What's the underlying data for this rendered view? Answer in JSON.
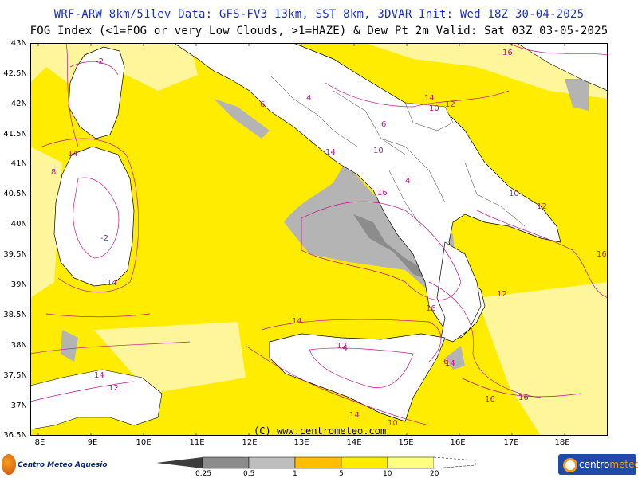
{
  "header": {
    "line1": "WRF-ARW 8km/51lev  Data: GFS-FV3 13km, SST 8km, 3DVAR  Init: Wed 18Z 30-04-2025",
    "line2": "FOG Index (<1=FOG or very Low Clouds, >1=HAZE) & Dew Pt 2m  Valid: Sat 03Z 03-05-2025"
  },
  "axes": {
    "lat_labels": [
      "43N",
      "42.5N",
      "42N",
      "41.5N",
      "41N",
      "40.5N",
      "40N",
      "39.5N",
      "39N",
      "38.5N",
      "38N",
      "37.5N",
      "37N",
      "36.5N"
    ],
    "lon_labels": [
      "8E",
      "9E",
      "10E",
      "11E",
      "12E",
      "13E",
      "14E",
      "15E",
      "16E",
      "17E",
      "18E"
    ]
  },
  "credit": "(C) www.centrometeo.com",
  "legend": {
    "labels": [
      "0.25",
      "0.5",
      "1",
      "5",
      "10",
      "20"
    ],
    "colors": [
      "#555555",
      "#8c8c8c",
      "#bebebe",
      "#ffbf00",
      "#ffec00",
      "#ffff80",
      "#ffffff"
    ]
  },
  "logos": {
    "left": "Centro Meteo Aquesio",
    "right_a": "centro",
    "right_b": "meteo"
  },
  "contour_labels": [
    "-6",
    "-4",
    "-2",
    "4",
    "6",
    "8",
    "10",
    "12",
    "14",
    "16"
  ],
  "colors": {
    "sea": "#ffec00",
    "land": "#ffffff",
    "fog": "#b4b4b4",
    "contour": "#c0168e",
    "title": "#1a2fd0"
  }
}
